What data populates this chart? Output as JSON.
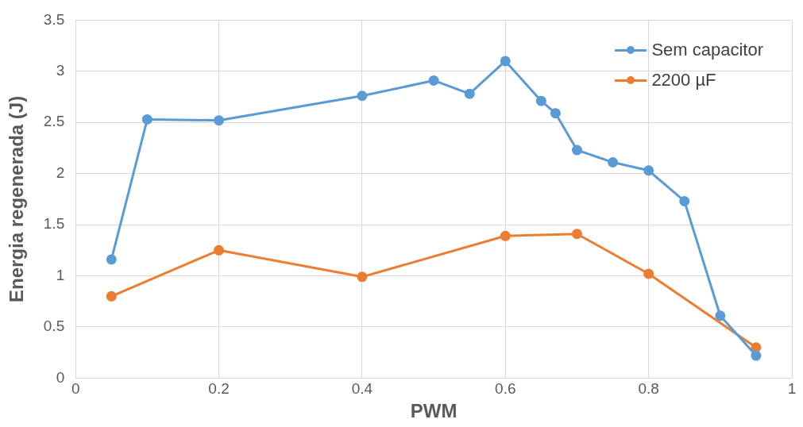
{
  "chart_data": {
    "type": "line",
    "xlabel": "PWM",
    "ylabel": "Energia regenerada (J)",
    "xlim": [
      0,
      1
    ],
    "xticks": [
      0,
      0.2,
      0.4,
      0.6,
      0.8,
      1
    ],
    "ylim": [
      0,
      3.5
    ],
    "yticks": [
      0,
      0.5,
      1,
      1.5,
      2,
      2.5,
      3,
      3.5
    ],
    "grid": true,
    "legend": "top right",
    "marker": "circle",
    "line_style": "solid",
    "series": [
      {
        "name": "Sem capacitor",
        "color": "#5b9bd5",
        "x": [
          0.05,
          0.1,
          0.2,
          0.4,
          0.5,
          0.55,
          0.6,
          0.65,
          0.67,
          0.7,
          0.75,
          0.8,
          0.85,
          0.9,
          0.95
        ],
        "values": [
          1.16,
          2.53,
          2.52,
          2.76,
          2.91,
          2.78,
          3.1,
          2.71,
          2.59,
          2.23,
          2.11,
          2.03,
          1.73,
          0.61,
          0.22
        ]
      },
      {
        "name": "2200 µF",
        "color": "#ed7d31",
        "x": [
          0.05,
          0.2,
          0.4,
          0.6,
          0.7,
          0.8,
          0.95
        ],
        "values": [
          0.8,
          1.25,
          0.99,
          1.39,
          1.41,
          1.02,
          0.3
        ]
      }
    ]
  }
}
